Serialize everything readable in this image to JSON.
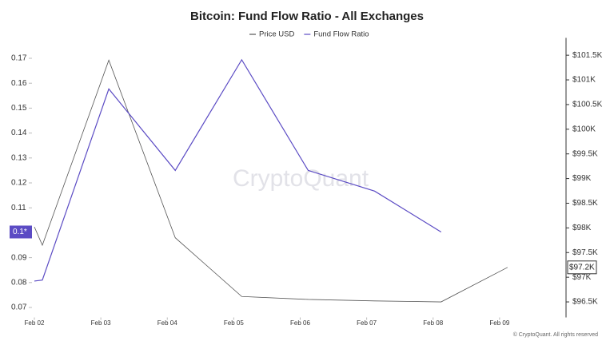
{
  "chart_data": {
    "type": "line",
    "title": "Bitcoin: Fund Flow Ratio - All Exchanges",
    "watermark": "CryptoQuant",
    "footer": "© CryptoQuant. All rights reserved",
    "x": [
      0,
      0.12,
      1.12,
      2.12,
      3.12,
      4.12,
      5.12,
      6.12,
      7.12
    ],
    "xlim": [
      0,
      8
    ],
    "xticks": [
      {
        "value": 0,
        "label": "Feb 02"
      },
      {
        "value": 1,
        "label": "Feb 03"
      },
      {
        "value": 2,
        "label": "Feb 04"
      },
      {
        "value": 3,
        "label": "Feb 05"
      },
      {
        "value": 4,
        "label": "Feb 06"
      },
      {
        "value": 5,
        "label": "Feb 07"
      },
      {
        "value": 6,
        "label": "Feb 08"
      },
      {
        "value": 7,
        "label": "Feb 09"
      }
    ],
    "ylim": [
      0.066,
      0.175
    ],
    "yticks": [
      0.07,
      0.08,
      0.09,
      0.1,
      0.11,
      0.12,
      0.13,
      0.14,
      0.15,
      0.16,
      0.17
    ],
    "y2lim": [
      96185,
      101690
    ],
    "y2ticks": [
      {
        "value": 96500,
        "label": "$96.5K"
      },
      {
        "value": 97000,
        "label": "$97K"
      },
      {
        "value": 97500,
        "label": "$97.5K"
      },
      {
        "value": 98000,
        "label": "$98K"
      },
      {
        "value": 98500,
        "label": "$98.5K"
      },
      {
        "value": 99000,
        "label": "$99K"
      },
      {
        "value": 99500,
        "label": "$99.5K"
      },
      {
        "value": 100000,
        "label": "$100K"
      },
      {
        "value": 100500,
        "label": "$100.5K"
      },
      {
        "value": 101000,
        "label": "$101K"
      },
      {
        "value": 101500,
        "label": "$101.5K"
      }
    ],
    "series": [
      {
        "name": "Price USD",
        "color": "#555555",
        "axis": "y2",
        "badge": "$97.2K",
        "values": [
          98020,
          97650,
          101400,
          97800,
          96610,
          96550,
          96520,
          96500,
          97200
        ]
      },
      {
        "name": "Fund Flow Ratio",
        "color": "#5b4bc4",
        "axis": "y",
        "badge": "0.1*",
        "values": [
          0.0806,
          0.081,
          0.1577,
          0.125,
          0.1694,
          0.125,
          0.1167,
          0.1003,
          null
        ]
      }
    ]
  }
}
